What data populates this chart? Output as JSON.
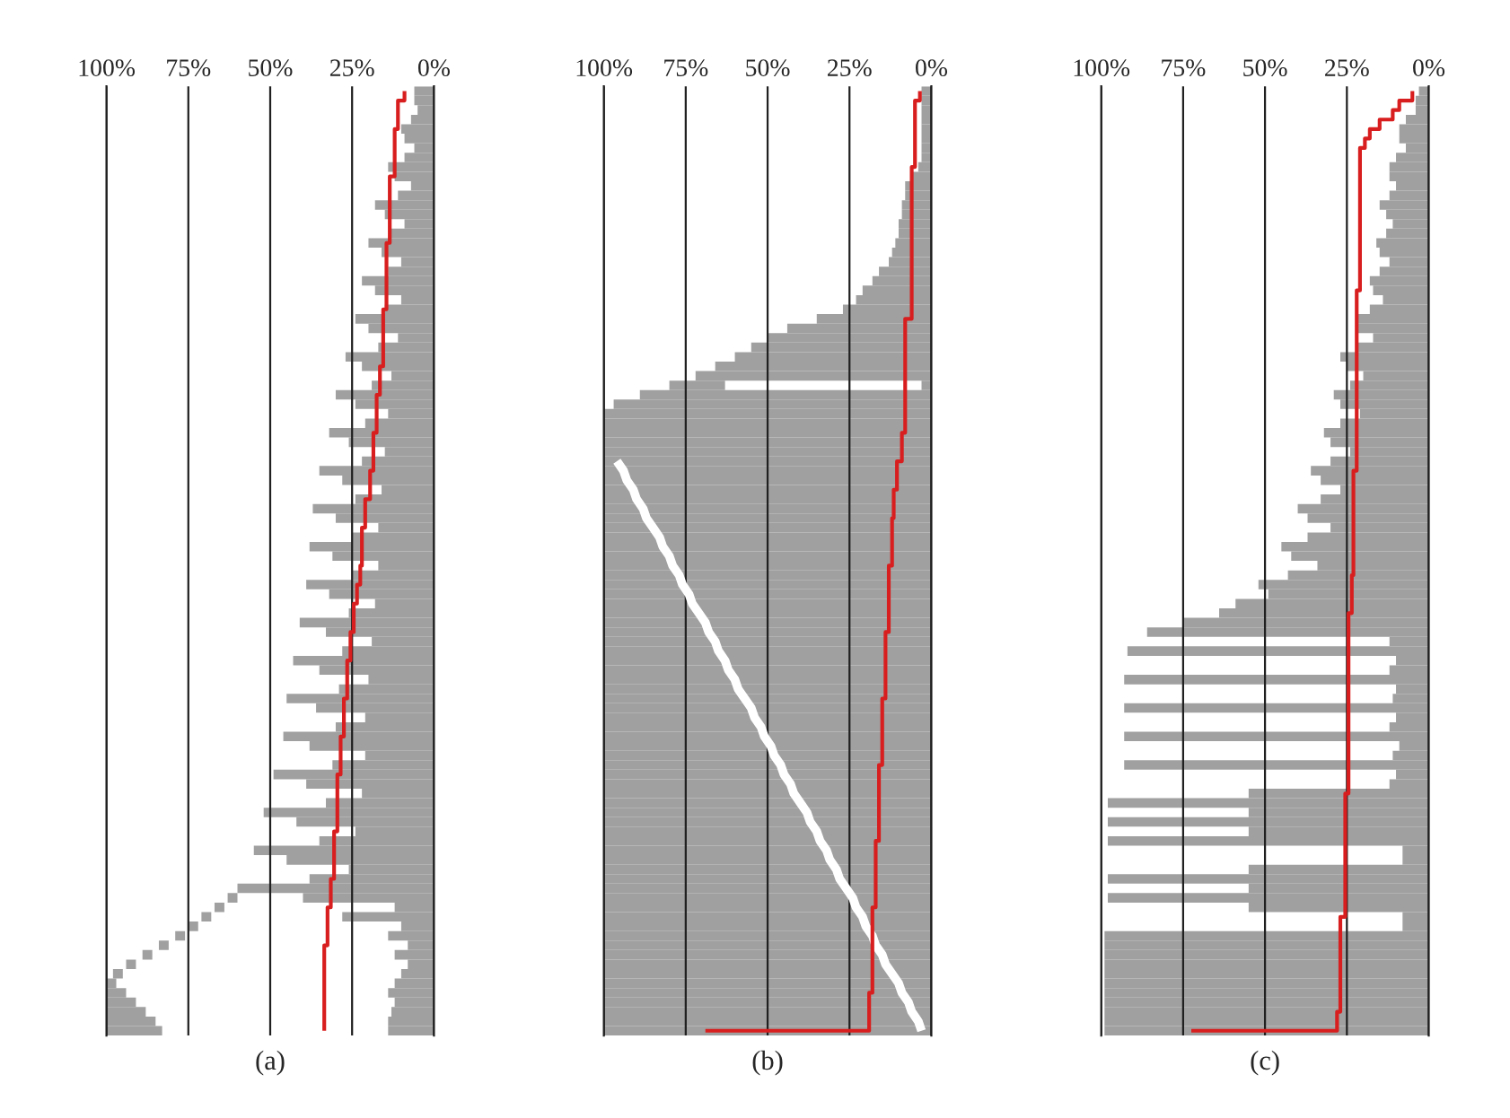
{
  "chart_data": [
    {
      "type": "bar",
      "orientation": "horizontal",
      "xlabel": "(a)",
      "categories": [
        null,
        null,
        null,
        null,
        null,
        null,
        null,
        null,
        null,
        null,
        null,
        null,
        null,
        null,
        null,
        null,
        null,
        null,
        null,
        null,
        null,
        null,
        null,
        null,
        null,
        null,
        null,
        null,
        null,
        null,
        null,
        null,
        null,
        null,
        null,
        null,
        null,
        null,
        null,
        null,
        null,
        null,
        null,
        null,
        null,
        null,
        null,
        null,
        null,
        null,
        null,
        null,
        null,
        null,
        null,
        null,
        null,
        null,
        null,
        null,
        null,
        null,
        null,
        null,
        null,
        null,
        null,
        null,
        null,
        null,
        null,
        null,
        null,
        null,
        null,
        null,
        null,
        null,
        null,
        null,
        null,
        null,
        null,
        null,
        null,
        null,
        null,
        null,
        null,
        null,
        null,
        null,
        null,
        null,
        null,
        null,
        null,
        null,
        null,
        null
      ],
      "series": [
        {
          "color": "#a0a0a0",
          "values": [
            6,
            6,
            5,
            7,
            10,
            9,
            6,
            9,
            14,
            12,
            7,
            11,
            18,
            15,
            9,
            13,
            20,
            16,
            10,
            14,
            22,
            18,
            10,
            15,
            24,
            20,
            11,
            17,
            27,
            22,
            13,
            19,
            30,
            24,
            14,
            21,
            32,
            26,
            15,
            22,
            35,
            28,
            16,
            24,
            37,
            30,
            17,
            25,
            38,
            31,
            17,
            25,
            39,
            32,
            18,
            26,
            41,
            33,
            19,
            28,
            43,
            35,
            20,
            29,
            45,
            36,
            21,
            30,
            46,
            38,
            21,
            31,
            49,
            39,
            22,
            33,
            52,
            42,
            24,
            35,
            55,
            45,
            26,
            38,
            60,
            40,
            12,
            28,
            10,
            14,
            8,
            12,
            8,
            10,
            12,
            14,
            12,
            13,
            14,
            14
          ]
        },
        {
          "color": "#a0a0a0",
          "values": [
            null,
            null,
            null,
            null,
            null,
            null,
            null,
            null,
            null,
            null,
            null,
            null,
            null,
            null,
            null,
            null,
            null,
            null,
            null,
            null,
            null,
            null,
            null,
            null,
            null,
            null,
            null,
            null,
            null,
            null,
            null,
            null,
            null,
            null,
            null,
            null,
            null,
            null,
            null,
            null,
            null,
            null,
            null,
            null,
            null,
            null,
            null,
            null,
            null,
            null,
            null,
            null,
            null,
            null,
            null,
            null,
            null,
            null,
            null,
            null,
            null,
            null,
            null,
            null,
            null,
            null,
            null,
            null,
            null,
            null,
            null,
            null,
            null,
            null,
            null,
            null,
            null,
            null,
            null,
            null,
            null,
            null,
            null,
            null,
            null,
            3,
            3,
            3,
            3,
            3,
            3,
            3,
            3,
            3,
            3,
            6,
            9,
            12,
            15,
            17
          ],
          "base": [
            null,
            null,
            null,
            null,
            null,
            null,
            null,
            null,
            null,
            null,
            null,
            null,
            null,
            null,
            null,
            null,
            null,
            null,
            null,
            null,
            null,
            null,
            null,
            null,
            null,
            null,
            null,
            null,
            null,
            null,
            null,
            null,
            null,
            null,
            null,
            null,
            null,
            null,
            null,
            null,
            null,
            null,
            null,
            null,
            null,
            null,
            null,
            null,
            null,
            null,
            null,
            null,
            null,
            null,
            null,
            null,
            null,
            null,
            null,
            null,
            null,
            null,
            null,
            null,
            null,
            null,
            null,
            null,
            null,
            null,
            null,
            null,
            null,
            null,
            null,
            null,
            null,
            null,
            null,
            null,
            null,
            null,
            null,
            null,
            null,
            60,
            64,
            68,
            72,
            76,
            81,
            86,
            91,
            95,
            97,
            94,
            91,
            88,
            85,
            83
          ]
        },
        {
          "type": "step",
          "color": "#d81e1e",
          "values": [
            9,
            11,
            11,
            11,
            12,
            12,
            12,
            12,
            12,
            13.5,
            13.5,
            13.5,
            13.5,
            13.5,
            13.5,
            13.5,
            14.5,
            14.5,
            14.5,
            14.5,
            14.5,
            14.5,
            14.5,
            15.5,
            15.5,
            15.5,
            15.5,
            15.5,
            15.5,
            16.5,
            16.5,
            16.5,
            17.5,
            17.5,
            17.5,
            17.5,
            18.5,
            18.5,
            18.5,
            18.5,
            19.5,
            19.5,
            19.5,
            21,
            21,
            21,
            22,
            22,
            22,
            22,
            22.5,
            22.5,
            23.5,
            23.5,
            24.5,
            24.5,
            24.5,
            25.5,
            25.5,
            25.5,
            26.5,
            26.5,
            26.5,
            26.5,
            27.5,
            27.5,
            27.5,
            27.5,
            28.5,
            28.5,
            28.5,
            28.5,
            29.5,
            29.5,
            29.5,
            29.5,
            29.5,
            29.5,
            30.5,
            30.5,
            30.5,
            30.5,
            30.5,
            31.5,
            31.5,
            31.5,
            32.5,
            32.5,
            32.5,
            32.5,
            33.5,
            33.5,
            33.5,
            33.5,
            33.5,
            33.5,
            33.5,
            33.5,
            33.5,
            33.5
          ]
        }
      ],
      "xlim": [
        100,
        0
      ],
      "xticks": [
        {
          "value": 100,
          "label": "100%"
        },
        {
          "value": 75,
          "label": "75%"
        },
        {
          "value": 50,
          "label": "50%"
        },
        {
          "value": 25,
          "label": "25%"
        },
        {
          "value": 0,
          "label": "0%"
        }
      ],
      "grid": "x",
      "tick_labels": "x"
    },
    {
      "type": "bar",
      "orientation": "horizontal",
      "xlabel": "(b)",
      "categories": [
        null,
        null,
        null,
        null,
        null,
        null,
        null,
        null,
        null,
        null,
        null,
        null,
        null,
        null,
        null,
        null,
        null,
        null,
        null,
        null,
        null,
        null,
        null,
        null,
        null,
        null,
        null,
        null,
        null,
        null,
        null,
        null,
        null,
        null,
        null,
        null,
        null,
        null,
        null,
        null,
        null,
        null,
        null,
        null,
        null,
        null,
        null,
        null,
        null,
        null,
        null,
        null,
        null,
        null,
        null,
        null,
        null,
        null,
        null,
        null,
        null,
        null,
        null,
        null,
        null,
        null,
        null,
        null,
        null,
        null,
        null,
        null,
        null,
        null,
        null,
        null,
        null,
        null,
        null,
        null,
        null,
        null,
        null,
        null,
        null,
        null,
        null,
        null,
        null,
        null,
        null,
        null,
        null,
        null,
        null,
        null,
        null,
        null,
        null,
        null
      ],
      "series": [
        {
          "color": "#a0a0a0",
          "values": [
            3,
            3,
            3,
            3,
            3,
            3,
            3,
            3,
            4,
            6,
            8,
            8,
            9,
            9,
            10,
            10,
            11,
            12,
            13,
            16,
            18,
            21,
            23,
            27,
            35,
            44,
            50,
            55,
            60,
            66,
            72,
            3,
            89,
            97,
            100,
            100,
            100,
            100,
            100,
            100,
            100,
            100,
            100,
            100,
            100,
            100,
            100,
            100,
            100,
            100,
            100,
            100,
            100,
            100,
            100,
            100,
            100,
            100,
            100,
            100,
            100,
            100,
            100,
            100,
            100,
            100,
            100,
            100,
            100,
            100,
            100,
            100,
            100,
            100,
            100,
            100,
            100,
            100,
            100,
            100,
            100,
            100,
            100,
            100,
            100,
            100,
            100,
            100,
            100,
            100,
            100,
            100,
            100,
            100,
            100,
            100,
            100,
            100,
            100,
            100
          ]
        },
        {
          "color": "#a0a0a0",
          "values": [
            null,
            null,
            null,
            null,
            null,
            null,
            null,
            null,
            null,
            null,
            null,
            null,
            null,
            null,
            null,
            null,
            null,
            null,
            null,
            null,
            null,
            null,
            null,
            null,
            null,
            null,
            null,
            null,
            null,
            null,
            null,
            17,
            null,
            null,
            null,
            null,
            null,
            null,
            null,
            null,
            null,
            null,
            null,
            null,
            null,
            null,
            null,
            null,
            null,
            null,
            null,
            null,
            null,
            null,
            null,
            null,
            null,
            null,
            null,
            null,
            null,
            null,
            null,
            null,
            null,
            null,
            null,
            null,
            null,
            null,
            null,
            null,
            null,
            null,
            null,
            null,
            null,
            null,
            null,
            null,
            null,
            null,
            null,
            null,
            null,
            null,
            null,
            null,
            null,
            null,
            null,
            null,
            null,
            null,
            null,
            null,
            null,
            null,
            null,
            null
          ],
          "base": [
            null,
            null,
            null,
            null,
            null,
            null,
            null,
            null,
            null,
            null,
            null,
            null,
            null,
            null,
            null,
            null,
            null,
            null,
            null,
            null,
            null,
            null,
            null,
            null,
            null,
            null,
            null,
            null,
            null,
            null,
            null,
            63,
            null,
            null,
            null,
            null,
            null,
            null,
            null,
            null,
            null,
            null,
            null,
            null,
            null,
            null,
            null,
            null,
            null,
            null,
            null,
            null,
            null,
            null,
            null,
            null,
            null,
            null,
            null,
            null,
            null,
            null,
            null,
            null,
            null,
            null,
            null,
            null,
            null,
            null,
            null,
            null,
            null,
            null,
            null,
            null,
            null,
            null,
            null,
            null,
            null,
            null,
            null,
            null,
            null,
            null,
            null,
            null,
            null,
            null,
            null,
            null,
            null,
            null,
            null,
            null,
            null,
            null,
            null,
            null
          ]
        },
        {
          "type": "line",
          "color": "#ffffff",
          "values": [
            null,
            null,
            null,
            null,
            null,
            null,
            null,
            null,
            null,
            null,
            null,
            null,
            null,
            null,
            null,
            null,
            null,
            null,
            null,
            null,
            null,
            null,
            null,
            null,
            null,
            null,
            null,
            null,
            null,
            null,
            null,
            null,
            null,
            null,
            null,
            null,
            null,
            null,
            null,
            96,
            94,
            93,
            91,
            90,
            88,
            87,
            85,
            83,
            82,
            80,
            79,
            77,
            76,
            74,
            73,
            71,
            69,
            68,
            66,
            65,
            63,
            62,
            60,
            59,
            57,
            55,
            54,
            52,
            51,
            49,
            48,
            46,
            45,
            43,
            42,
            40,
            38,
            37,
            35,
            34,
            32,
            31,
            29,
            28,
            26,
            24,
            23,
            21,
            20,
            18,
            17,
            15,
            14,
            12,
            10,
            9,
            7,
            6,
            4,
            3
          ]
        },
        {
          "type": "step",
          "color": "#d81e1e",
          "values": [
            3.5,
            5,
            5,
            5,
            5,
            5,
            5,
            5,
            6,
            6,
            6,
            6,
            6,
            6,
            6,
            6,
            6,
            6,
            6,
            6,
            6,
            6,
            6,
            6,
            8,
            8,
            8,
            8,
            8,
            8,
            8,
            8,
            8,
            8,
            8,
            8,
            9,
            9,
            9,
            10.5,
            10.5,
            10.5,
            11.5,
            11.5,
            11.5,
            12,
            12,
            12,
            12,
            12,
            13,
            13,
            13,
            13,
            13,
            13,
            13,
            14,
            14,
            14,
            14,
            14,
            14,
            14,
            15,
            15,
            15,
            15,
            15,
            15,
            15,
            16,
            16,
            16,
            16,
            16,
            16,
            16,
            16,
            17,
            17,
            17,
            17,
            17,
            17,
            17,
            18,
            18,
            18,
            18,
            18,
            18,
            18,
            18,
            18,
            19,
            19,
            19,
            19,
            69
          ]
        }
      ],
      "xlim": [
        100,
        0
      ],
      "xticks": [
        {
          "value": 100,
          "label": "100%"
        },
        {
          "value": 75,
          "label": "75%"
        },
        {
          "value": 50,
          "label": "50%"
        },
        {
          "value": 25,
          "label": "25%"
        },
        {
          "value": 0,
          "label": "0%"
        }
      ],
      "grid": "x",
      "tick_labels": "x"
    },
    {
      "type": "bar",
      "orientation": "horizontal",
      "xlabel": "(c)",
      "categories": [
        null,
        null,
        null,
        null,
        null,
        null,
        null,
        null,
        null,
        null,
        null,
        null,
        null,
        null,
        null,
        null,
        null,
        null,
        null,
        null,
        null,
        null,
        null,
        null,
        null,
        null,
        null,
        null,
        null,
        null,
        null,
        null,
        null,
        null,
        null,
        null,
        null,
        null,
        null,
        null,
        null,
        null,
        null,
        null,
        null,
        null,
        null,
        null,
        null,
        null,
        null,
        null,
        null,
        null,
        null,
        null,
        null,
        null,
        null,
        null,
        null,
        null,
        null,
        null,
        null,
        null,
        null,
        null,
        null,
        null,
        null,
        null,
        null,
        null,
        null,
        null,
        null,
        null,
        null,
        null,
        null,
        null,
        null,
        null,
        null,
        null,
        null,
        null,
        null,
        null,
        null,
        null,
        null,
        null,
        null,
        null,
        null,
        null,
        null,
        null
      ],
      "series": [
        {
          "color": "#a0a0a0",
          "values": [
            3,
            4,
            4,
            7,
            9,
            9,
            7,
            10,
            12,
            12,
            10,
            12,
            15,
            13,
            11,
            13,
            16,
            15,
            12,
            15,
            18,
            17,
            14,
            18,
            22,
            22,
            17,
            22,
            27,
            25,
            20,
            24,
            29,
            27,
            21,
            27,
            32,
            30,
            24,
            30,
            36,
            33,
            27,
            33,
            40,
            37,
            30,
            37,
            45,
            42,
            34,
            43,
            52,
            49,
            59,
            64,
            75,
            86,
            12,
            92,
            10,
            12,
            93,
            10,
            11,
            93,
            10,
            12,
            93,
            9,
            11,
            93,
            10,
            12,
            55,
            98,
            55,
            98,
            55,
            98,
            8,
            8,
            55,
            98,
            55,
            98,
            55,
            8,
            8,
            99,
            99,
            99,
            99,
            99,
            99,
            99,
            99,
            99,
            99,
            99
          ]
        },
        {
          "type": "step",
          "color": "#d81e1e",
          "values": [
            5,
            9,
            11,
            15,
            18,
            19.5,
            21,
            21,
            21,
            21,
            21,
            21,
            21,
            21,
            21,
            21,
            21,
            21,
            21,
            21,
            21,
            22,
            22,
            22,
            22,
            22,
            22,
            22,
            22,
            22,
            22,
            22,
            22,
            22,
            22,
            22,
            22,
            22,
            22,
            22,
            23,
            23,
            23,
            23,
            23,
            23,
            23,
            23,
            23,
            23,
            23,
            23.5,
            23.5,
            23.5,
            23.5,
            24.5,
            24.5,
            24.5,
            24.5,
            24.5,
            24.5,
            24.5,
            24.5,
            24.5,
            24.5,
            24.5,
            24.5,
            24.5,
            24.5,
            24.5,
            24.5,
            24.5,
            24.5,
            24.5,
            25.5,
            25.5,
            25.5,
            25.5,
            25.5,
            25.5,
            25.5,
            25.5,
            25.5,
            25.5,
            25.5,
            25.5,
            25.5,
            27,
            27,
            27,
            27,
            27,
            27,
            27,
            27,
            27,
            27,
            28,
            28,
            72.5
          ]
        }
      ],
      "xlim": [
        100,
        0
      ],
      "xticks": [
        {
          "value": 100,
          "label": "100%"
        },
        {
          "value": 75,
          "label": "75%"
        },
        {
          "value": 50,
          "label": "50%"
        },
        {
          "value": 25,
          "label": "25%"
        },
        {
          "value": 0,
          "label": "0%"
        }
      ],
      "grid": "x",
      "tick_labels": "x"
    }
  ]
}
